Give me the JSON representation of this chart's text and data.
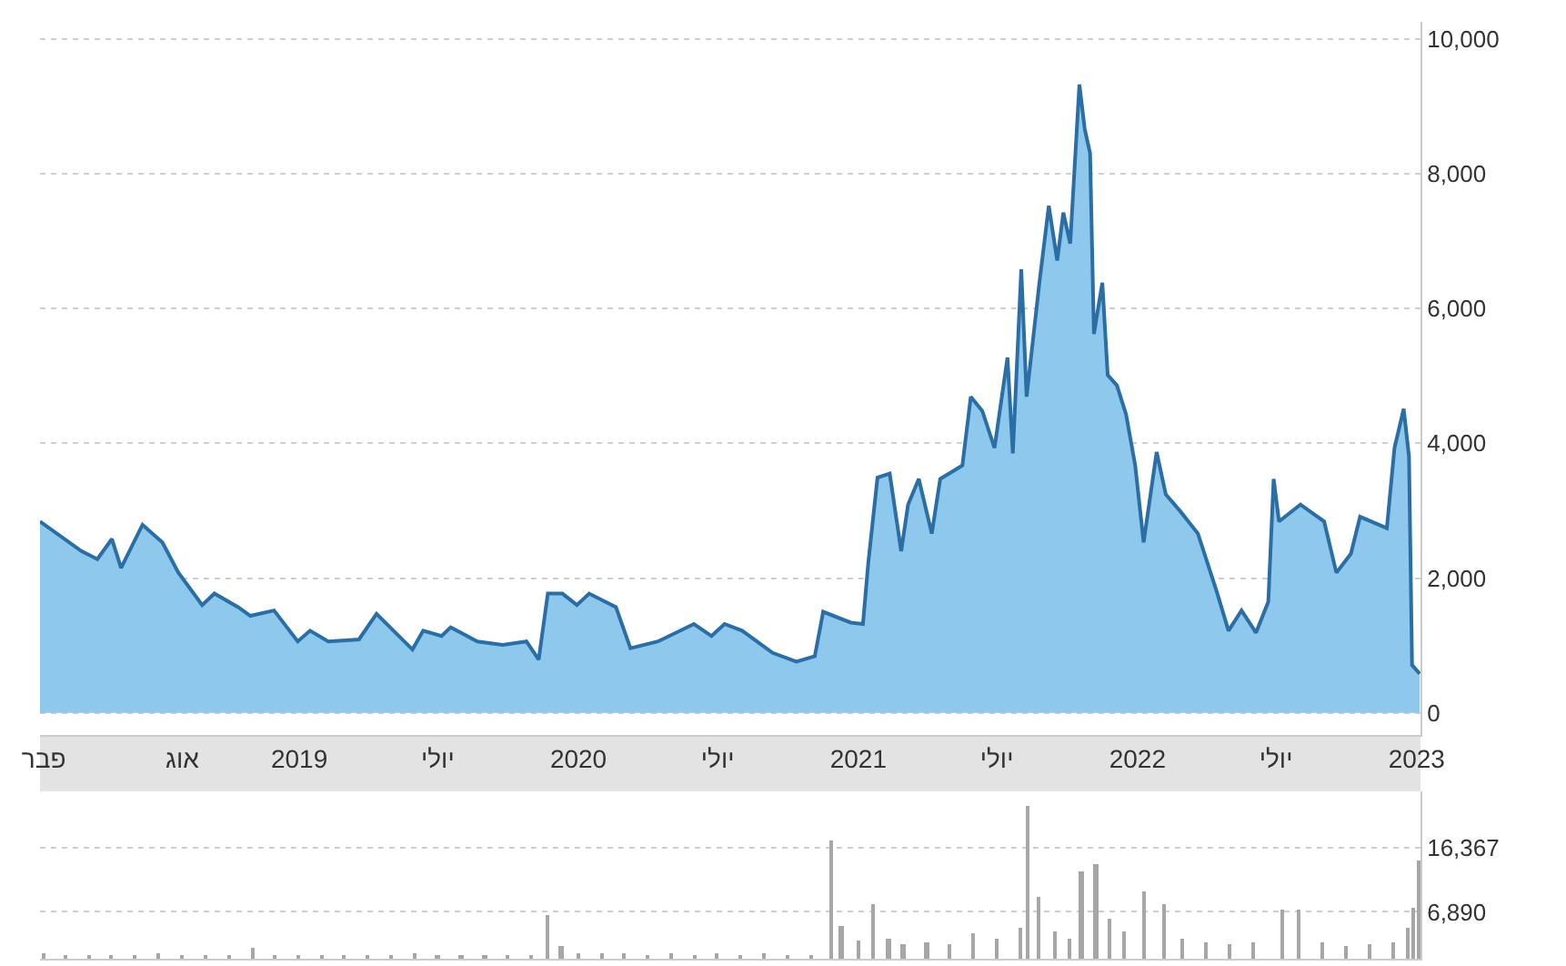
{
  "chart_data": [
    {
      "type": "area",
      "color": "#8ec8ec",
      "x": [
        "2018-01-27",
        "2018-03-22",
        "2018-04-12",
        "2018-05-01",
        "2018-05-13",
        "2018-06-10",
        "2018-07-06",
        "2018-07-27",
        "2018-08-27",
        "2018-09-12",
        "2018-10-13",
        "2018-10-29",
        "2018-11-29",
        "2018-12-30",
        "2019-01-15",
        "2019-02-08",
        "2019-03-20",
        "2019-04-12",
        "2019-05-29",
        "2019-06-12",
        "2019-07-06",
        "2019-07-18",
        "2019-08-22",
        "2019-09-24",
        "2019-10-25",
        "2019-11-10",
        "2019-11-22",
        "2019-12-11",
        "2019-12-30",
        "2020-01-15",
        "2020-02-19",
        "2020-03-09",
        "2020-04-14",
        "2020-05-31",
        "2020-06-23",
        "2020-07-10",
        "2020-08-02",
        "2020-09-11",
        "2020-10-12",
        "2020-11-05",
        "2020-11-16",
        "2020-12-22",
        "2021-01-07",
        "2021-01-14",
        "2021-01-26",
        "2021-02-11",
        "2021-02-26",
        "2021-03-07",
        "2021-03-21",
        "2021-04-07",
        "2021-04-18",
        "2021-05-17",
        "2021-05-28",
        "2021-06-12",
        "2021-06-28",
        "2021-07-15",
        "2021-07-22",
        "2021-08-02",
        "2021-08-09",
        "2021-08-26",
        "2021-09-07",
        "2021-09-18",
        "2021-09-26",
        "2021-10-05",
        "2021-10-17",
        "2021-10-24",
        "2021-10-31",
        "2021-11-05",
        "2021-11-16",
        "2021-11-23",
        "2021-12-05",
        "2021-12-17",
        "2021-12-29",
        "2022-01-09",
        "2022-01-26",
        "2022-02-07",
        "2022-02-26",
        "2022-03-21",
        "2022-04-14",
        "2022-04-30",
        "2022-05-17",
        "2022-06-05",
        "2022-06-21",
        "2022-06-28",
        "2022-07-05",
        "2022-08-02",
        "2022-09-02",
        "2022-09-18",
        "2022-10-07",
        "2022-10-19",
        "2022-11-23",
        "2022-12-03",
        "2022-12-15",
        "2022-12-22",
        "2022-12-26",
        "2023-01-05"
      ],
      "values": [
        2840,
        2400,
        2280,
        2580,
        2150,
        2790,
        2530,
        2080,
        1600,
        1770,
        1570,
        1440,
        1520,
        1060,
        1220,
        1060,
        1090,
        1470,
        940,
        1220,
        1140,
        1270,
        1060,
        1010,
        1060,
        790,
        1770,
        1770,
        1600,
        1770,
        1570,
        960,
        1060,
        1320,
        1140,
        1320,
        1220,
        890,
        760,
        840,
        1500,
        1340,
        1320,
        2230,
        3490,
        3550,
        2400,
        3090,
        3470,
        2660,
        3470,
        3670,
        4690,
        4480,
        3930,
        5270,
        3850,
        6580,
        4690,
        6410,
        7520,
        6710,
        7420,
        6960,
        9320,
        8660,
        8300,
        5620,
        6380,
        5010,
        4860,
        4430,
        3670,
        2530,
        3870,
        3240,
        2990,
        2660,
        1820,
        1220,
        1520,
        1190,
        1650,
        3470,
        2840,
        3090,
        2840,
        2080,
        2360,
        2910,
        2740,
        3930,
        4510,
        3800,
        710,
        580
      ],
      "xlim": [
        "2018-01-27",
        "2023-01-06"
      ],
      "xticks": [
        {
          "value": "2018-02-01",
          "label": "פבר"
        },
        {
          "value": "2018-08-01",
          "label": "אוג"
        },
        {
          "value": "2019-01-01",
          "label": "2019"
        },
        {
          "value": "2019-07-01",
          "label": "יולי"
        },
        {
          "value": "2020-01-01",
          "label": "2020"
        },
        {
          "value": "2020-07-01",
          "label": "יולי"
        },
        {
          "value": "2021-01-01",
          "label": "2021"
        },
        {
          "value": "2021-07-01",
          "label": "יולי"
        },
        {
          "value": "2022-01-01",
          "label": "2022"
        },
        {
          "value": "2022-07-01",
          "label": "יולי"
        },
        {
          "value": "2023-01-01",
          "label": "2023"
        }
      ],
      "ylim": [
        -330,
        10250
      ],
      "yticks": [
        0,
        {
          "value": 2000,
          "label": "2,000"
        },
        {
          "value": 4000,
          "label": "4,000"
        },
        {
          "value": 6000,
          "label": "6,000"
        },
        {
          "value": 8000,
          "label": "8,000"
        },
        {
          "value": 10000,
          "label": "10,000"
        }
      ],
      "grid": "y",
      "legend": false
    },
    {
      "type": "bar",
      "color": "#a6a6a6",
      "x": [
        "2018-02-01",
        "2018-03-01",
        "2018-04-01",
        "2018-05-01",
        "2018-06-01",
        "2018-07-01",
        "2018-08-01",
        "2018-09-01",
        "2018-10-01",
        "2018-11-01",
        "2018-12-01",
        "2019-01-01",
        "2019-02-01",
        "2019-03-01",
        "2019-04-01",
        "2019-05-01",
        "2019-06-01",
        "2019-07-01",
        "2019-08-01",
        "2019-09-01",
        "2019-10-01",
        "2019-11-01",
        "2019-11-22",
        "2019-12-10",
        "2020-01-01",
        "2020-02-01",
        "2020-03-01",
        "2020-04-01",
        "2020-05-01",
        "2020-06-01",
        "2020-07-01",
        "2020-08-01",
        "2020-09-01",
        "2020-10-01",
        "2020-11-01",
        "2020-11-28",
        "2020-12-10",
        "2021-01-01",
        "2021-01-20",
        "2021-02-10",
        "2021-03-01",
        "2021-04-01",
        "2021-05-01",
        "2021-06-01",
        "2021-07-01",
        "2021-08-01",
        "2021-08-10",
        "2021-08-25",
        "2021-09-15",
        "2021-10-05",
        "2021-10-20",
        "2021-11-08",
        "2021-11-25",
        "2021-12-15",
        "2022-01-10",
        "2022-02-05",
        "2022-03-01",
        "2022-04-01",
        "2022-05-01",
        "2022-06-01",
        "2022-07-10",
        "2022-08-01",
        "2022-09-01",
        "2022-10-01",
        "2022-11-01",
        "2022-12-01",
        "2022-12-20",
        "2022-12-28",
        "2023-01-04"
      ],
      "values": [
        700,
        500,
        400,
        600,
        500,
        900,
        500,
        400,
        600,
        1500,
        400,
        500,
        400,
        600,
        500,
        400,
        700,
        400,
        500,
        400,
        500,
        600,
        6400,
        1800,
        900,
        700,
        900,
        600,
        700,
        600,
        800,
        600,
        700,
        600,
        500,
        17400,
        4800,
        2600,
        8000,
        3000,
        2200,
        2500,
        2200,
        3800,
        3000,
        4500,
        22400,
        9000,
        4000,
        3000,
        12900,
        14000,
        6000,
        4000,
        9900,
        8000,
        3000,
        2500,
        2200,
        2500,
        7200,
        7200,
        2500,
        2000,
        2200,
        2500,
        4500,
        7600,
        14400
      ],
      "xlim": [
        "2018-01-27",
        "2023-01-06"
      ],
      "ylim": [
        0,
        24600
      ],
      "yticks": [
        {
          "value": 6890,
          "label": "6,890"
        },
        {
          "value": 16367,
          "label": "16,367"
        }
      ],
      "tick_labels": "y",
      "grid": "y",
      "legend": false
    }
  ]
}
